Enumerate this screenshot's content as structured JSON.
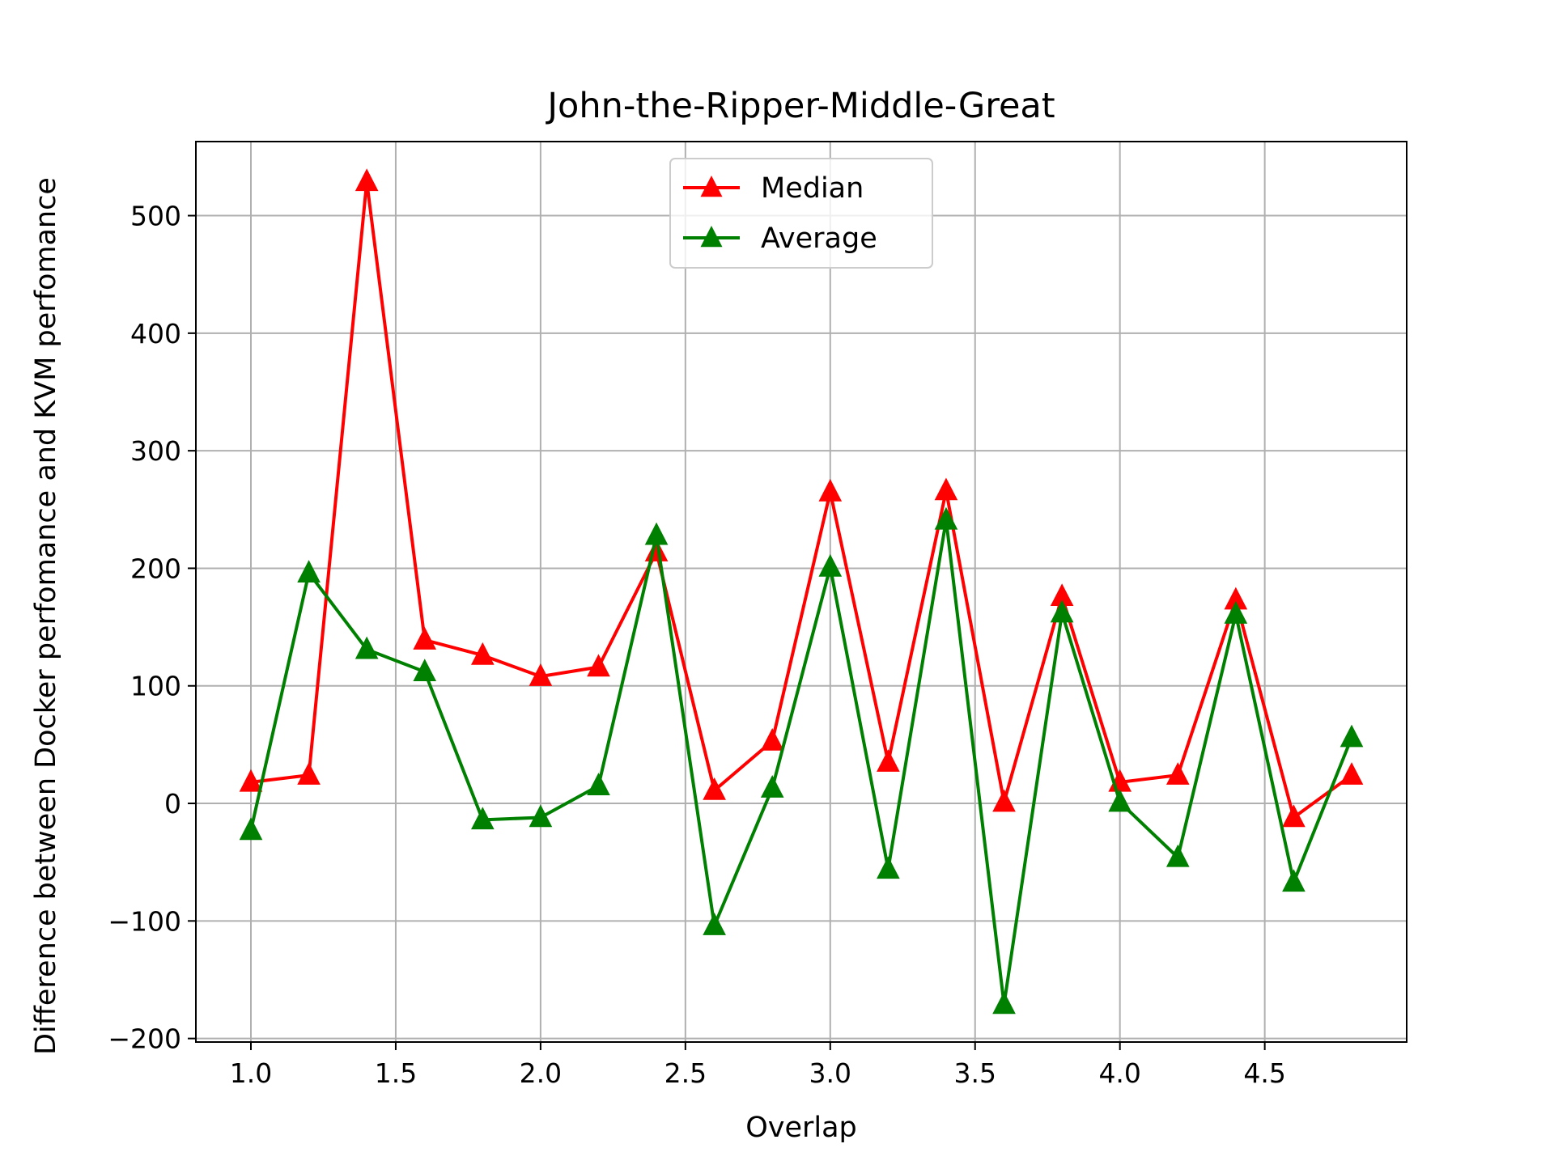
{
  "chart_data": {
    "type": "line",
    "title": "John-the-Ripper-Middle-Great",
    "xlabel": "Overlap",
    "ylabel": "Difference between Docker perfomance and KVM perfomance",
    "xlim": [
      0.81,
      4.99
    ],
    "ylim": [
      -203,
      563
    ],
    "xticks": [
      1.0,
      1.5,
      2.0,
      2.5,
      3.0,
      3.5,
      4.0,
      4.5
    ],
    "xtick_labels": [
      "1.0",
      "1.5",
      "2.0",
      "2.5",
      "3.0",
      "3.5",
      "4.0",
      "4.5"
    ],
    "yticks": [
      -200,
      -100,
      0,
      100,
      200,
      300,
      400,
      500
    ],
    "ytick_labels": [
      "−200",
      "−100",
      "0",
      "100",
      "200",
      "300",
      "400",
      "500"
    ],
    "grid": true,
    "legend_position": "upper center",
    "x": [
      1.0,
      1.2,
      1.4,
      1.6,
      1.8,
      2.0,
      2.2,
      2.4,
      2.6,
      2.8,
      3.0,
      3.2,
      3.4,
      3.6,
      3.8,
      4.0,
      4.2,
      4.4,
      4.6,
      4.8
    ],
    "series": [
      {
        "name": "Median",
        "color": "#ff0000",
        "marker": "triangle-up",
        "values": [
          18,
          24,
          529,
          139,
          126,
          108,
          116,
          214,
          11,
          53,
          265,
          35,
          266,
          1,
          176,
          18,
          24,
          173,
          -12,
          24
        ]
      },
      {
        "name": "Average",
        "color": "#008000",
        "marker": "triangle-up",
        "values": [
          -23,
          196,
          131,
          112,
          -14,
          -12,
          15,
          228,
          -104,
          13,
          201,
          -56,
          241,
          -171,
          162,
          1,
          -46,
          161,
          -67,
          56
        ]
      }
    ]
  }
}
